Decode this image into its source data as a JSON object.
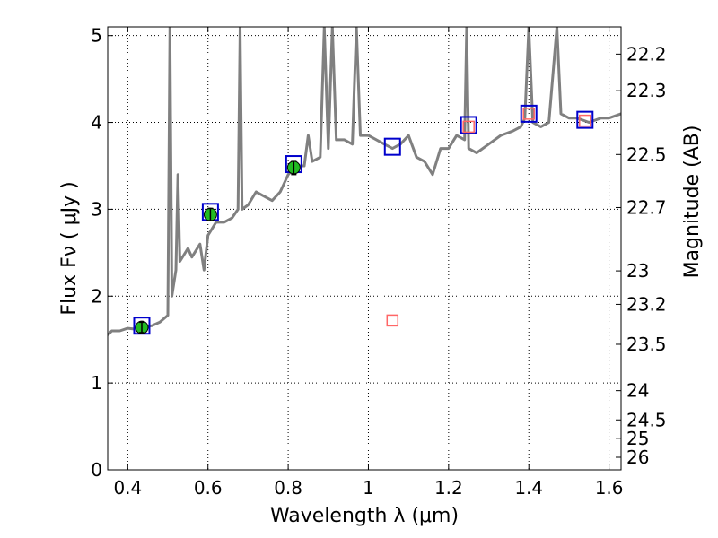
{
  "chart_data": {
    "type": "line",
    "title": "",
    "xlabel": "Wavelength  λ (μm)",
    "ylabel": "Flux  Fν  ( μJy )",
    "y2label": "Magnitude (AB)",
    "xlim": [
      0.35,
      1.63
    ],
    "ylim": [
      0,
      5.1
    ],
    "xticks": [
      0.4,
      0.6,
      0.8,
      1.0,
      1.2,
      1.4,
      1.6
    ],
    "xtick_labels": [
      "0.4",
      "0.6",
      "0.8",
      "1",
      "1.2",
      "1.4",
      "1.6"
    ],
    "yticks": [
      0,
      1,
      2,
      3,
      4,
      5
    ],
    "ytick_labels": [
      "0",
      "1",
      "2",
      "3",
      "4",
      "5"
    ],
    "y2_ticks": [
      22.2,
      22.3,
      22.5,
      22.7,
      23,
      23.2,
      23.5,
      24,
      24.5,
      25,
      26
    ],
    "y2_tick_labels": [
      "22.2",
      "22.3",
      "22.5",
      "22.7",
      "23",
      "23.2",
      "23.5",
      "24",
      "24.5",
      "25",
      "26"
    ],
    "grid": true,
    "colors": {
      "spectrum": "#808080",
      "model_marker": "#0000cc",
      "observed_fill": "#22bb22",
      "upper_marker": "#ff6666",
      "grid": "#000000"
    },
    "series": [
      {
        "kind": "model-spectrum",
        "points": [
          [
            0.35,
            1.55
          ],
          [
            0.36,
            1.6
          ],
          [
            0.38,
            1.6
          ],
          [
            0.4,
            1.63
          ],
          [
            0.42,
            1.62
          ],
          [
            0.44,
            1.65
          ],
          [
            0.46,
            1.66
          ],
          [
            0.48,
            1.7
          ],
          [
            0.5,
            1.78
          ],
          [
            0.505,
            5.1
          ],
          [
            0.51,
            2.0
          ],
          [
            0.52,
            2.3
          ],
          [
            0.525,
            3.4
          ],
          [
            0.53,
            2.4
          ],
          [
            0.55,
            2.55
          ],
          [
            0.56,
            2.45
          ],
          [
            0.58,
            2.6
          ],
          [
            0.59,
            2.3
          ],
          [
            0.6,
            2.7
          ],
          [
            0.62,
            2.85
          ],
          [
            0.64,
            2.85
          ],
          [
            0.66,
            2.9
          ],
          [
            0.675,
            3.0
          ],
          [
            0.68,
            5.1
          ],
          [
            0.685,
            3.0
          ],
          [
            0.7,
            3.05
          ],
          [
            0.72,
            3.2
          ],
          [
            0.74,
            3.15
          ],
          [
            0.76,
            3.1
          ],
          [
            0.78,
            3.2
          ],
          [
            0.8,
            3.4
          ],
          [
            0.81,
            3.45
          ],
          [
            0.83,
            3.5
          ],
          [
            0.84,
            3.5
          ],
          [
            0.85,
            3.85
          ],
          [
            0.86,
            3.55
          ],
          [
            0.88,
            3.6
          ],
          [
            0.89,
            5.1
          ],
          [
            0.9,
            3.7
          ],
          [
            0.91,
            5.1
          ],
          [
            0.92,
            3.8
          ],
          [
            0.94,
            3.8
          ],
          [
            0.96,
            3.75
          ],
          [
            0.97,
            5.1
          ],
          [
            0.98,
            3.85
          ],
          [
            1.0,
            3.85
          ],
          [
            1.02,
            3.8
          ],
          [
            1.04,
            3.75
          ],
          [
            1.06,
            3.7
          ],
          [
            1.08,
            3.75
          ],
          [
            1.1,
            3.85
          ],
          [
            1.12,
            3.6
          ],
          [
            1.14,
            3.55
          ],
          [
            1.16,
            3.4
          ],
          [
            1.18,
            3.7
          ],
          [
            1.2,
            3.7
          ],
          [
            1.22,
            3.85
          ],
          [
            1.24,
            3.8
          ],
          [
            1.245,
            5.1
          ],
          [
            1.25,
            3.7
          ],
          [
            1.27,
            3.65
          ],
          [
            1.3,
            3.75
          ],
          [
            1.33,
            3.85
          ],
          [
            1.36,
            3.9
          ],
          [
            1.38,
            3.95
          ],
          [
            1.39,
            4.05
          ],
          [
            1.4,
            5.1
          ],
          [
            1.41,
            4.0
          ],
          [
            1.43,
            3.95
          ],
          [
            1.45,
            4.0
          ],
          [
            1.47,
            5.1
          ],
          [
            1.48,
            4.1
          ],
          [
            1.5,
            4.05
          ],
          [
            1.52,
            4.05
          ],
          [
            1.55,
            4.0
          ],
          [
            1.58,
            4.05
          ],
          [
            1.6,
            4.05
          ],
          [
            1.63,
            4.1
          ]
        ]
      },
      {
        "kind": "model-photometry",
        "x": [
          0.435,
          0.606,
          0.814,
          1.06,
          1.25,
          1.4,
          1.54
        ],
        "y": [
          1.66,
          2.97,
          3.52,
          3.72,
          3.97,
          4.1,
          4.03
        ]
      },
      {
        "kind": "observed",
        "x": [
          0.435,
          0.606,
          0.814
        ],
        "y": [
          1.64,
          2.94,
          3.48
        ],
        "yerr": [
          0.06,
          0.07,
          0.08
        ]
      },
      {
        "kind": "upper-bands",
        "x": [
          1.06,
          1.25,
          1.4,
          1.54
        ],
        "y": [
          1.72,
          3.95,
          4.1,
          4.02
        ]
      }
    ]
  }
}
